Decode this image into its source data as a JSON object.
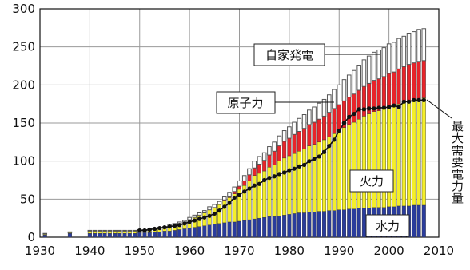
{
  "chart_data": {
    "type": "bar",
    "stacked": true,
    "xlim": [
      1930,
      2010
    ],
    "ylim": [
      0,
      300
    ],
    "x_ticks": [
      1930,
      1940,
      1950,
      1960,
      1970,
      1980,
      1990,
      2000,
      2010
    ],
    "y_ticks": [
      0,
      50,
      100,
      150,
      200,
      250,
      300
    ],
    "grid": true,
    "series_colors": {
      "hydro": "#2a3c9c",
      "thermal": "#f4ee2a",
      "nuclear": "#e8242a",
      "self": "#8c8c8c",
      "demand": "#111111"
    },
    "labels": {
      "self": "自家発電",
      "nuclear": "原子力",
      "thermal": "火力",
      "hydro": "水力",
      "demand": "最大需要電力量"
    },
    "x": [
      1931,
      1936,
      1940,
      1941,
      1942,
      1943,
      1944,
      1945,
      1946,
      1947,
      1948,
      1949,
      1950,
      1951,
      1952,
      1953,
      1954,
      1955,
      1956,
      1957,
      1958,
      1959,
      1960,
      1961,
      1962,
      1963,
      1964,
      1965,
      1966,
      1967,
      1968,
      1969,
      1970,
      1971,
      1972,
      1973,
      1974,
      1975,
      1976,
      1977,
      1978,
      1979,
      1980,
      1981,
      1982,
      1983,
      1984,
      1985,
      1986,
      1987,
      1988,
      1989,
      1990,
      1991,
      1992,
      1993,
      1994,
      1995,
      1996,
      1997,
      1998,
      1999,
      2000,
      2001,
      2002,
      2003,
      2004,
      2005,
      2006,
      2007
    ],
    "series": [
      {
        "key": "hydro",
        "values": [
          3,
          5,
          5,
          5,
          5,
          5,
          5,
          5,
          5,
          5,
          5,
          5,
          6,
          6,
          6,
          7,
          7,
          8,
          8,
          9,
          10,
          11,
          12,
          13,
          14,
          15,
          16,
          17,
          18,
          19,
          20,
          20,
          21,
          22,
          23,
          24,
          25,
          26,
          27,
          27,
          28,
          29,
          30,
          31,
          32,
          32,
          33,
          33,
          34,
          34,
          35,
          35,
          36,
          36,
          37,
          37,
          38,
          38,
          38,
          39,
          39,
          39,
          40,
          40,
          41,
          41,
          41,
          42,
          42,
          42
        ]
      },
      {
        "key": "thermal",
        "values": [
          1,
          1,
          3,
          3,
          3,
          3,
          3,
          3,
          3,
          3,
          3,
          3,
          3,
          3,
          4,
          4,
          5,
          5,
          6,
          7,
          8,
          9,
          11,
          13,
          15,
          17,
          20,
          22,
          25,
          29,
          32,
          37,
          42,
          46,
          51,
          57,
          59,
          61,
          65,
          68,
          72,
          75,
          77,
          79,
          81,
          84,
          87,
          89,
          91,
          94,
          97,
          101,
          104,
          108,
          111,
          114,
          117,
          121,
          124,
          126,
          127,
          129,
          131,
          132,
          134,
          136,
          138,
          139,
          140,
          141
        ]
      },
      {
        "key": "nuclear",
        "values": [
          0,
          0,
          0,
          0,
          0,
          0,
          0,
          0,
          0,
          0,
          0,
          0,
          0,
          0,
          0,
          0,
          0,
          0,
          0,
          0,
          0,
          0,
          0,
          0,
          0,
          0,
          0,
          0,
          0,
          1,
          2,
          3,
          4,
          6,
          8,
          10,
          12,
          14,
          16,
          18,
          20,
          22,
          23,
          25,
          26,
          27,
          28,
          29,
          30,
          31,
          32,
          33,
          34,
          35,
          36,
          37,
          38,
          39,
          40,
          41,
          42,
          43,
          44,
          45,
          46,
          47,
          48,
          48,
          49,
          49
        ]
      },
      {
        "key": "self",
        "values": [
          1,
          1,
          1,
          1,
          1,
          1,
          1,
          1,
          1,
          1,
          1,
          1,
          1,
          1,
          1,
          1,
          1,
          1,
          2,
          2,
          2,
          2,
          3,
          3,
          3,
          3,
          4,
          4,
          4,
          5,
          5,
          6,
          7,
          7,
          8,
          9,
          10,
          10,
          11,
          12,
          13,
          14,
          15,
          16,
          17,
          18,
          19,
          20,
          21,
          22,
          23,
          25,
          26,
          28,
          29,
          31,
          33,
          35,
          36,
          37,
          38,
          38,
          39,
          39,
          40,
          40,
          41,
          41,
          42,
          42
        ]
      },
      {
        "key": "demand",
        "type": "line",
        "values": [
          null,
          null,
          null,
          null,
          null,
          null,
          null,
          null,
          null,
          null,
          null,
          null,
          9,
          9,
          10,
          11,
          12,
          13,
          14,
          15,
          16,
          18,
          20,
          22,
          24,
          26,
          28,
          31,
          35,
          40,
          45,
          52,
          56,
          60,
          64,
          68,
          70,
          75,
          78,
          80,
          83,
          85,
          88,
          90,
          93,
          95,
          100,
          103,
          106,
          112,
          120,
          128,
          140,
          150,
          158,
          162,
          168,
          168,
          169,
          169,
          170,
          170,
          171,
          173,
          171,
          178,
          178,
          180,
          180,
          180
        ]
      }
    ]
  }
}
